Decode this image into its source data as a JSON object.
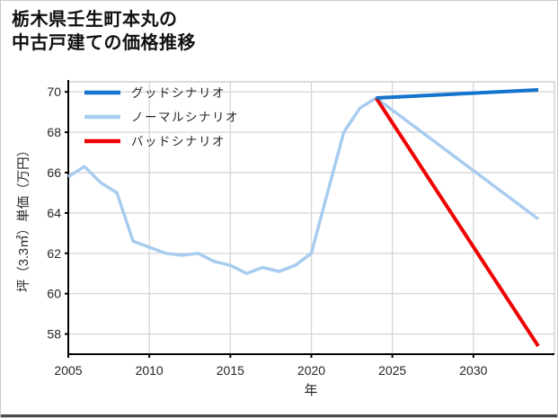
{
  "title": {
    "line1": "栃木県壬生町本丸の",
    "line2": "中古戸建ての価格推移"
  },
  "colors": {
    "grid": "#d8d8d8",
    "spine_minor": "#d0d0d0",
    "axis": "#000000",
    "text": "#262626",
    "title_text": "#111111",
    "bottom_bar": "#4a4a4a",
    "frame_border": "#c9c9c9",
    "good_scenario": "#1473cc",
    "normal_scenario": "#a8ccf0",
    "bad_scenario": "#ee0000"
  },
  "chart_data": {
    "type": "line",
    "title": "栃木県壬生町本丸の中古戸建ての価格推移",
    "xlabel": "年",
    "ylabel": "坪（3.3㎡）単価（万円）",
    "xlim": [
      2005,
      2035
    ],
    "ylim": [
      57,
      70.5
    ],
    "xticks": [
      2005,
      2010,
      2015,
      2020,
      2025,
      2030
    ],
    "yticks": [
      58,
      60,
      62,
      64,
      66,
      68,
      70
    ],
    "grid": true,
    "legend_position": "upper-left",
    "series": [
      {
        "id": "good-scenario",
        "name": "グッドシナリオ",
        "color": "#1473cc",
        "line_width": 4,
        "z": 3,
        "x": [
          2024,
          2034
        ],
        "y": [
          69.7,
          70.1
        ]
      },
      {
        "id": "normal-scenario",
        "name": "ノーマルシナリオ",
        "color": "#a8ccf0",
        "line_width": 3.5,
        "z": 1,
        "x": [
          2005,
          2006,
          2007,
          2008,
          2009,
          2010,
          2011,
          2012,
          2013,
          2014,
          2015,
          2016,
          2017,
          2018,
          2019,
          2020,
          2021,
          2022,
          2023,
          2024,
          2034
        ],
        "y": [
          65.8,
          66.3,
          65.5,
          65.0,
          62.6,
          62.3,
          62.0,
          61.9,
          62.0,
          61.6,
          61.4,
          61.0,
          61.3,
          61.1,
          61.4,
          62.0,
          65.0,
          68.0,
          69.2,
          69.7,
          63.7
        ]
      },
      {
        "id": "bad-scenario",
        "name": "バッドシナリオ",
        "color": "#ee0000",
        "line_width": 4,
        "z": 2,
        "x": [
          2024,
          2034
        ],
        "y": [
          69.7,
          57.4
        ]
      }
    ]
  }
}
